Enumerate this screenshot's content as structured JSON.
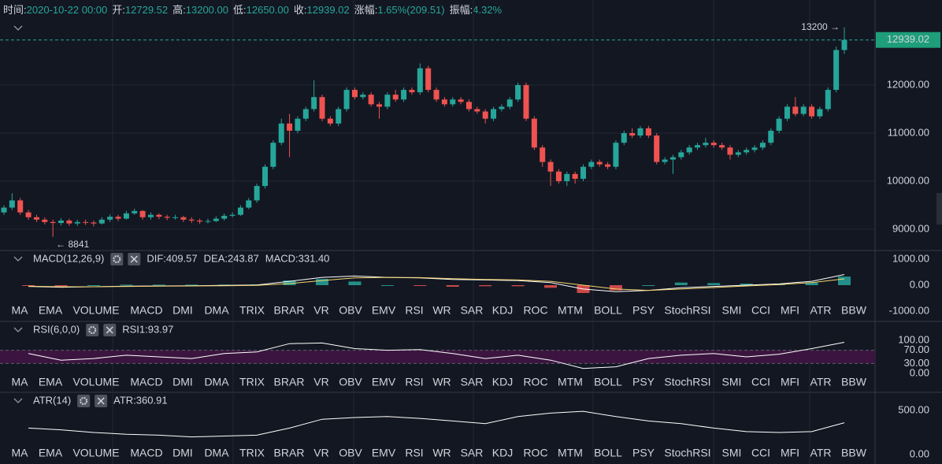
{
  "header": {
    "items": [
      {
        "label": "时间:",
        "value": "2020-10-22 00:00"
      },
      {
        "label": "开:",
        "value": "12729.52"
      },
      {
        "label": "高:",
        "value": "13200.00"
      },
      {
        "label": "低:",
        "value": "12650.00"
      },
      {
        "label": "收:",
        "value": "12939.02"
      },
      {
        "label": "涨幅:",
        "value": "1.65%(209.51)"
      },
      {
        "label": "振幅:",
        "value": "4.32%"
      }
    ]
  },
  "tabs": [
    "MA",
    "EMA",
    "VOLUME",
    "MACD",
    "DMI",
    "DMA",
    "TRIX",
    "BRAR",
    "VR",
    "OBV",
    "EMV",
    "RSI",
    "WR",
    "SAR",
    "KDJ",
    "ROC",
    "MTM",
    "BOLL",
    "PSY",
    "StochRSI",
    "SMI",
    "CCI",
    "MFI",
    "ATR",
    "BBW"
  ],
  "chart_data": [
    {
      "type": "candlestick",
      "up_color": "#26a69a",
      "down_color": "#ef5350",
      "grid": true,
      "ylim": [
        8590,
        13475
      ],
      "yticks": [
        {
          "value": 9000,
          "label": "9000.00"
        },
        {
          "value": 10000,
          "label": "10000.00"
        },
        {
          "value": 11000,
          "label": "11000.00"
        },
        {
          "value": 12000,
          "label": "12000.00"
        }
      ],
      "annotations": [
        {
          "text": "13200 →",
          "anchor": "high"
        },
        {
          "text": "← 8841",
          "anchor": "low"
        }
      ],
      "ohlc": [
        [
          9350,
          9500,
          9300,
          9450
        ],
        [
          9450,
          9750,
          9400,
          9600
        ],
        [
          9600,
          9650,
          9300,
          9350
        ],
        [
          9350,
          9400,
          9200,
          9250
        ],
        [
          9250,
          9300,
          9150,
          9200
        ],
        [
          9200,
          9250,
          9100,
          9150
        ],
        [
          9150,
          9200,
          8841,
          9130
        ],
        [
          9130,
          9230,
          9080,
          9180
        ],
        [
          9180,
          9220,
          9070,
          9120
        ],
        [
          9120,
          9200,
          9070,
          9150
        ],
        [
          9150,
          9200,
          9090,
          9140
        ],
        [
          9140,
          9180,
          9060,
          9120
        ],
        [
          9120,
          9250,
          9100,
          9200
        ],
        [
          9200,
          9310,
          9150,
          9260
        ],
        [
          9260,
          9300,
          9170,
          9220
        ],
        [
          9220,
          9380,
          9200,
          9330
        ],
        [
          9330,
          9430,
          9300,
          9380
        ],
        [
          9380,
          9400,
          9200,
          9250
        ],
        [
          9250,
          9350,
          9200,
          9300
        ],
        [
          9300,
          9330,
          9210,
          9260
        ],
        [
          9260,
          9300,
          9190,
          9240
        ],
        [
          9240,
          9300,
          9200,
          9250
        ],
        [
          9250,
          9280,
          9150,
          9200
        ],
        [
          9200,
          9250,
          9130,
          9180
        ],
        [
          9180,
          9220,
          9110,
          9160
        ],
        [
          9160,
          9220,
          9120,
          9170
        ],
        [
          9170,
          9270,
          9150,
          9220
        ],
        [
          9220,
          9330,
          9180,
          9280
        ],
        [
          9280,
          9350,
          9250,
          9300
        ],
        [
          9300,
          9500,
          9280,
          9450
        ],
        [
          9450,
          9650,
          9420,
          9600
        ],
        [
          9600,
          9950,
          9550,
          9900
        ],
        [
          9900,
          10350,
          9850,
          10300
        ],
        [
          10300,
          10850,
          10250,
          10800
        ],
        [
          10800,
          11300,
          10750,
          11200
        ],
        [
          11200,
          11400,
          10500,
          11050
        ],
        [
          11050,
          11350,
          11000,
          11300
        ],
        [
          11300,
          11550,
          11250,
          11500
        ],
        [
          11500,
          12100,
          11450,
          11750
        ],
        [
          11750,
          11800,
          11250,
          11300
        ],
        [
          11300,
          11350,
          11150,
          11200
        ],
        [
          11200,
          11550,
          11150,
          11500
        ],
        [
          11500,
          11950,
          11450,
          11900
        ],
        [
          11900,
          11950,
          11700,
          11750
        ],
        [
          11750,
          11850,
          11700,
          11800
        ],
        [
          11800,
          11850,
          11550,
          11600
        ],
        [
          11600,
          11650,
          11300,
          11550
        ],
        [
          11550,
          11850,
          11500,
          11800
        ],
        [
          11800,
          11900,
          11650,
          11700
        ],
        [
          11700,
          11950,
          11650,
          11900
        ],
        [
          11900,
          11950,
          11800,
          11850
        ],
        [
          11850,
          12450,
          11800,
          12350
        ],
        [
          12350,
          12400,
          11850,
          11900
        ],
        [
          11900,
          11950,
          11650,
          11700
        ],
        [
          11700,
          11750,
          11550,
          11600
        ],
        [
          11600,
          11750,
          11550,
          11700
        ],
        [
          11700,
          11750,
          11600,
          11650
        ],
        [
          11650,
          11700,
          11450,
          11500
        ],
        [
          11500,
          11550,
          11400,
          11450
        ],
        [
          11450,
          11500,
          11200,
          11300
        ],
        [
          11300,
          11550,
          11250,
          11500
        ],
        [
          11500,
          11600,
          11450,
          11550
        ],
        [
          11550,
          11750,
          11500,
          11700
        ],
        [
          11700,
          12050,
          11650,
          12000
        ],
        [
          12000,
          12050,
          11250,
          11300
        ],
        [
          11300,
          11350,
          10650,
          10700
        ],
        [
          10700,
          10750,
          10300,
          10400
        ],
        [
          10400,
          10450,
          9900,
          10200
        ],
        [
          10200,
          10250,
          9950,
          10000
        ],
        [
          10000,
          10200,
          9900,
          10150
        ],
        [
          10150,
          10200,
          9950,
          10050
        ],
        [
          10050,
          10350,
          10000,
          10300
        ],
        [
          10300,
          10450,
          10250,
          10400
        ],
        [
          10400,
          10450,
          10300,
          10350
        ],
        [
          10350,
          10400,
          10250,
          10300
        ],
        [
          10300,
          10850,
          10250,
          10800
        ],
        [
          10800,
          11050,
          10750,
          11000
        ],
        [
          11000,
          11100,
          10900,
          10950
        ],
        [
          10950,
          11150,
          10900,
          11100
        ],
        [
          11100,
          11150,
          10900,
          10950
        ],
        [
          10950,
          11000,
          10350,
          10400
        ],
        [
          10400,
          10500,
          10350,
          10450
        ],
        [
          10450,
          10550,
          10150,
          10500
        ],
        [
          10500,
          10650,
          10450,
          10600
        ],
        [
          10600,
          10750,
          10550,
          10700
        ],
        [
          10700,
          10800,
          10650,
          10750
        ],
        [
          10750,
          10900,
          10700,
          10800
        ],
        [
          10800,
          10850,
          10700,
          10750
        ],
        [
          10750,
          10800,
          10650,
          10700
        ],
        [
          10700,
          10750,
          10450,
          10550
        ],
        [
          10550,
          10650,
          10500,
          10600
        ],
        [
          10600,
          10700,
          10550,
          10650
        ],
        [
          10650,
          10750,
          10600,
          10700
        ],
        [
          10700,
          10850,
          10650,
          10800
        ],
        [
          10800,
          11100,
          10750,
          11050
        ],
        [
          11050,
          11350,
          11000,
          11300
        ],
        [
          11300,
          11600,
          11250,
          11550
        ],
        [
          11550,
          11750,
          11350,
          11400
        ],
        [
          11400,
          11600,
          11350,
          11550
        ],
        [
          11550,
          11600,
          11300,
          11350
        ],
        [
          11350,
          11550,
          11300,
          11500
        ],
        [
          11500,
          11950,
          11450,
          11900
        ],
        [
          11900,
          12800,
          11850,
          12729.52
        ],
        [
          12729.52,
          13200,
          12650,
          12939.02
        ]
      ]
    },
    {
      "type": "indicator",
      "title": "MACD(12,26,9)",
      "active_tab": 3,
      "legend": [
        {
          "text": "DIF:409.57",
          "color": "#ffffff"
        },
        {
          "text": "DEA:243.87",
          "color": "#f5d76e"
        },
        {
          "text": "MACD:331.40",
          "color": "#26a69a"
        }
      ],
      "ylim": [
        -1000,
        1000
      ],
      "yticks": [
        {
          "value": -1000,
          "label": "-1000.00"
        },
        {
          "value": 0,
          "label": "0.00"
        },
        {
          "value": 1000,
          "label": "1000.00"
        }
      ],
      "series": [
        {
          "style": "histogram",
          "color": "#26a69a",
          "negative_color": "#ef5350",
          "values": [
            -20,
            -40,
            0,
            20,
            20,
            20,
            20,
            30,
            180,
            240,
            140,
            0,
            -20,
            -60,
            -40,
            -40,
            -100,
            -300,
            -200,
            0,
            100,
            80,
            60,
            60,
            100,
            331.4
          ]
        },
        {
          "style": "line",
          "color": "#ffffff",
          "values": [
            -50,
            -80,
            -60,
            -40,
            -30,
            -20,
            -10,
            10,
            150,
            300,
            350,
            300,
            280,
            220,
            200,
            180,
            100,
            -150,
            -250,
            -200,
            -100,
            -50,
            0,
            50,
            150,
            409.57
          ]
        },
        {
          "style": "line",
          "color": "#f5d76e",
          "values": [
            -40,
            -60,
            -60,
            -50,
            -40,
            -30,
            -20,
            -5,
            60,
            180,
            280,
            300,
            290,
            250,
            220,
            200,
            150,
            0,
            -150,
            -200,
            -150,
            -90,
            -30,
            20,
            100,
            243.87
          ]
        }
      ]
    },
    {
      "type": "indicator",
      "title": "RSI(6,0,0)",
      "active_tab": 11,
      "legend": [
        {
          "text": "RSI1:93.97",
          "color": "#ffffff"
        }
      ],
      "ylim": [
        0,
        100
      ],
      "band": [
        30,
        70
      ],
      "band_color": "#3b1540",
      "yticks": [
        {
          "value": 0,
          "label": "0.00"
        },
        {
          "value": 30,
          "label": "30.00"
        },
        {
          "value": 70,
          "label": "70.00"
        },
        {
          "value": 100,
          "label": "100.00"
        }
      ],
      "series": [
        {
          "style": "line",
          "color": "#ffffff",
          "values": [
            60,
            40,
            45,
            55,
            50,
            45,
            60,
            65,
            90,
            92,
            75,
            70,
            72,
            60,
            45,
            55,
            40,
            15,
            20,
            45,
            55,
            60,
            50,
            58,
            75,
            93.97
          ]
        }
      ]
    },
    {
      "type": "indicator",
      "title": "ATR(14)",
      "active_tab": 23,
      "legend": [
        {
          "text": "ATR:360.91",
          "color": "#ffffff"
        }
      ],
      "ylim": [
        0,
        500
      ],
      "yticks": [
        {
          "value": 0,
          "label": "0.00"
        },
        {
          "value": 500,
          "label": "500.00"
        }
      ],
      "series": [
        {
          "style": "line",
          "color": "#ffffff",
          "values": [
            300,
            280,
            250,
            230,
            220,
            200,
            210,
            220,
            300,
            400,
            420,
            430,
            410,
            380,
            350,
            430,
            470,
            490,
            430,
            380,
            350,
            300,
            260,
            250,
            260,
            360.91
          ]
        }
      ]
    }
  ]
}
